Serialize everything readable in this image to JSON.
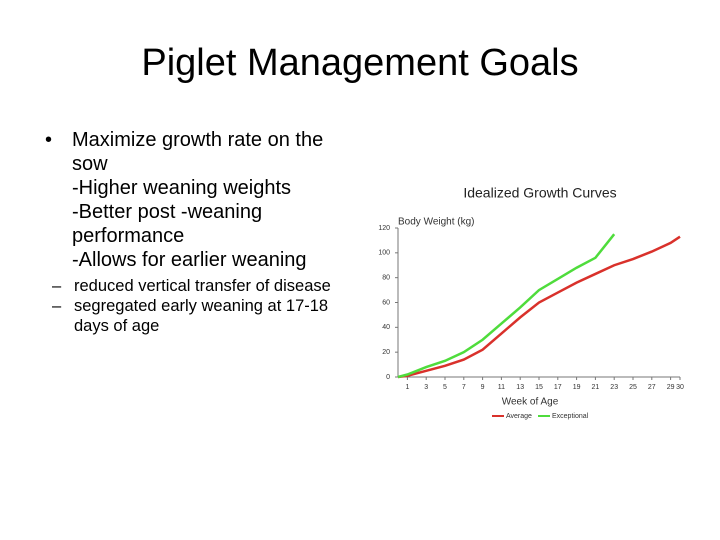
{
  "slide": {
    "title": "Piglet Management Goals",
    "items": [
      "Maximize growth rate on the sow",
      "-Higher weaning weights",
      "-Better post -weaning performance",
      "-Allows for earlier weaning"
    ],
    "sub_items": [
      "reduced   vertical transfer of disease",
      "segregated early weaning at 17-18 days of age"
    ]
  },
  "chart_data": {
    "type": "line",
    "title": "Idealized Growth Curves",
    "y_label": "Body Weight (kg)",
    "x_label": "Week of Age",
    "x": [
      0,
      1,
      3,
      5,
      7,
      9,
      11,
      13,
      15,
      17,
      19,
      21,
      23,
      25,
      27,
      29,
      30
    ],
    "series": [
      {
        "name": "Average",
        "color": "#d9312b",
        "values": [
          0,
          1,
          5,
          9,
          14,
          22,
          35,
          48,
          60,
          68,
          76,
          83,
          90,
          95,
          101,
          108,
          113
        ]
      },
      {
        "name": "Exceptional",
        "color": "#4fdc3c",
        "values": [
          0,
          2,
          8,
          13,
          20,
          30,
          43,
          56,
          70,
          79,
          88,
          96,
          115,
          null,
          null,
          null,
          null
        ]
      }
    ],
    "xlim": [
      0,
      30
    ],
    "xticks": [
      1,
      3,
      5,
      7,
      9,
      11,
      13,
      15,
      17,
      19,
      21,
      23,
      25,
      27,
      29,
      30
    ],
    "ylim": [
      0,
      120
    ],
    "yticks": [
      0,
      20,
      40,
      60,
      80,
      100,
      120
    ],
    "grid": false
  }
}
